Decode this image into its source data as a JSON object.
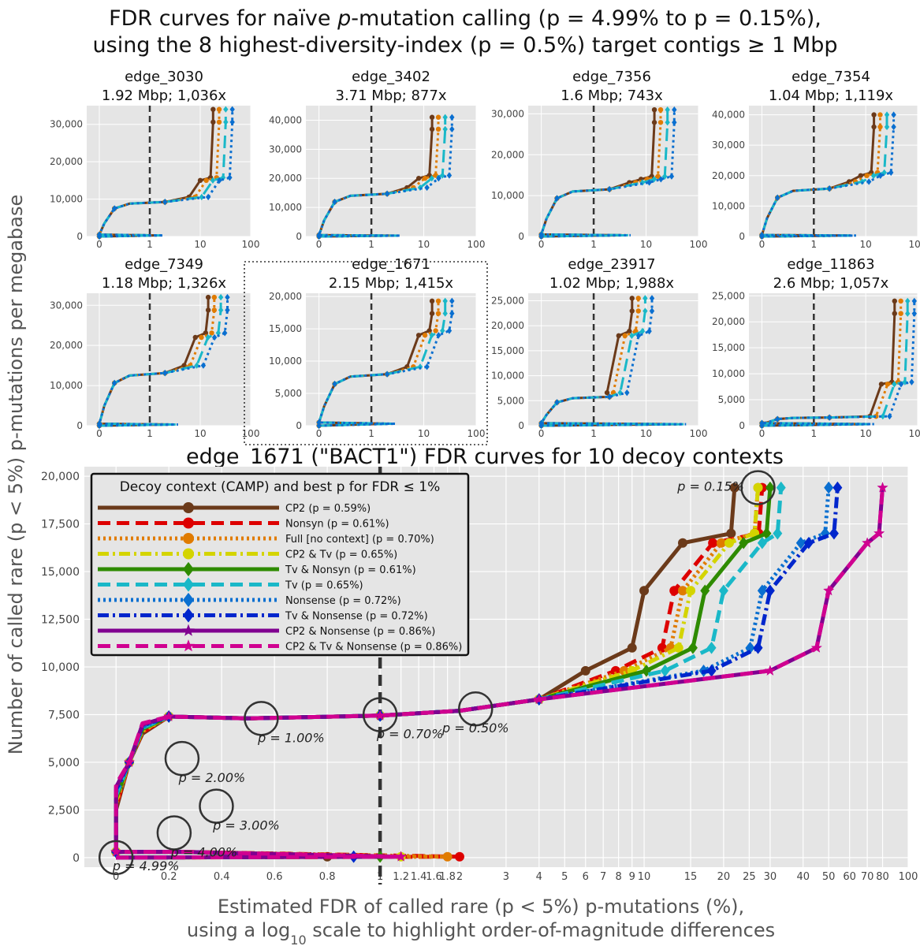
{
  "figure": {
    "title_line1_pre": "FDR curves for naïve ",
    "title_line1_p": "p",
    "title_line1_mid": "-mutation calling (",
    "title_line1_range": "p = 4.99% to p = 0.15%),",
    "title_line2": "using the 8 highest-diversity-index (p = 0.5%) target contigs ≥ 1 Mbp",
    "ylabel": "Number of called rare (p < 5%) p-mutations per megabase",
    "xlabel_line1": "Estimated FDR of called rare (p < 5%) p-mutations (%),",
    "xlabel_line2_pre": "using a log",
    "xlabel_line2_sub": "10",
    "xlabel_line2_post": " scale to highlight order-of-magnitude differences"
  },
  "chart_data": [
    {
      "type": "line",
      "name": "edge_3030",
      "stats": "1.92 Mbp; 1,036x",
      "ylim": [
        0,
        35000
      ],
      "yticks": [
        0,
        10000,
        20000,
        30000
      ],
      "ytick_labels": [
        "0",
        "10,000",
        "20,000",
        "30,000"
      ],
      "xticks": [
        0,
        1,
        10,
        100
      ],
      "xtick_labels": [
        "0",
        "1",
        "10",
        "100"
      ],
      "ymax": 34000,
      "tailx": 1.3,
      "knee": 8800,
      "kneex": 10,
      "jumpy": 15000
    },
    {
      "type": "line",
      "name": "edge_3402",
      "stats": "3.71 Mbp; 877x",
      "ylim": [
        0,
        45000
      ],
      "yticks": [
        0,
        10000,
        20000,
        30000,
        40000
      ],
      "ytick_labels": [
        "0",
        "10,000",
        "20,000",
        "30,000",
        "40,000"
      ],
      "xticks": [
        0,
        1,
        10,
        100
      ],
      "xtick_labels": [
        "0",
        "1",
        "10",
        "100"
      ],
      "ymax": 41000,
      "tailx": 2.5,
      "knee": 14000,
      "kneex": 8,
      "jumpy": 20000
    },
    {
      "type": "line",
      "name": "edge_7356",
      "stats": "1.6 Mbp; 743x",
      "ylim": [
        0,
        32000
      ],
      "yticks": [
        0,
        10000,
        20000,
        30000
      ],
      "ytick_labels": [
        "0",
        "10,000",
        "20,000",
        "30,000"
      ],
      "xticks": [
        0,
        1,
        10,
        100
      ],
      "xtick_labels": [
        "0",
        "1",
        "10",
        "100"
      ],
      "ymax": 31000,
      "tailx": 3.5,
      "knee": 11000,
      "kneex": 8,
      "jumpy": 14000
    },
    {
      "type": "line",
      "name": "edge_7354",
      "stats": "1.04 Mbp; 1,119x",
      "ylim": [
        0,
        43000
      ],
      "yticks": [
        0,
        10000,
        20000,
        30000,
        40000
      ],
      "ytick_labels": [
        "0",
        "10,000",
        "20,000",
        "30,000",
        "40,000"
      ],
      "xticks": [
        0,
        1,
        10,
        100
      ],
      "xtick_labels": [
        "0",
        "1",
        "10",
        "100"
      ],
      "ymax": 40000,
      "tailx": 4.5,
      "knee": 15000,
      "kneex": 8,
      "jumpy": 20000
    },
    {
      "type": "line",
      "name": "edge_7349",
      "stats": "1.18 Mbp; 1,326x",
      "ylim": [
        0,
        33000
      ],
      "yticks": [
        0,
        10000,
        20000,
        30000
      ],
      "ytick_labels": [
        "0",
        "10,000",
        "20,000",
        "30,000"
      ],
      "xticks": [
        0,
        1,
        10,
        100
      ],
      "xtick_labels": [
        "0",
        "1",
        "10",
        "100"
      ],
      "ymax": 32000,
      "tailx": 2.5,
      "knee": 12500,
      "kneex": 8,
      "jumpy": 22000
    },
    {
      "type": "line",
      "name": "edge_1671",
      "stats": "2.15 Mbp; 1,415x",
      "ylim": [
        0,
        20500
      ],
      "yticks": [
        0,
        5000,
        10000,
        15000,
        20000
      ],
      "ytick_labels": [
        "0",
        "5,000",
        "10,000",
        "15,000",
        "20,000"
      ],
      "xticks": [
        0,
        1,
        10,
        100
      ],
      "xtick_labels": [
        "0",
        "1",
        "10",
        "100"
      ],
      "ymax": 19300,
      "tailx": 2.0,
      "knee": 7600,
      "kneex": 8,
      "jumpy": 14000,
      "highlighted": true
    },
    {
      "type": "line",
      "name": "edge_23917",
      "stats": "1.02 Mbp; 1,988x",
      "ylim": [
        0,
        26500
      ],
      "yticks": [
        0,
        5000,
        10000,
        15000,
        20000,
        25000
      ],
      "ytick_labels": [
        "0",
        "5,000",
        "10,000",
        "15,000",
        "20,000",
        "25,000"
      ],
      "xticks": [
        0,
        1,
        10,
        100
      ],
      "xtick_labels": [
        "0",
        "1",
        "10",
        "100"
      ],
      "ymax": 25500,
      "tailx": 40,
      "knee": 5500,
      "kneex": 3,
      "jumpy": 18000
    },
    {
      "type": "line",
      "name": "edge_11863",
      "stats": "2.6 Mbp; 1,057x",
      "ylim": [
        0,
        25500
      ],
      "yticks": [
        0,
        5000,
        10000,
        15000,
        20000,
        25000
      ],
      "ytick_labels": [
        "0",
        "5,000",
        "10,000",
        "15,000",
        "20,000",
        "25,000"
      ],
      "xticks": [
        0,
        1,
        10,
        100
      ],
      "xtick_labels": [
        "0",
        "1",
        "10",
        "100"
      ],
      "ymax": 24000,
      "tailx": 10,
      "knee": 1500,
      "kneex": 20,
      "jumpy": 8000
    },
    {
      "type": "line",
      "name": "main",
      "title": "edge_1671 (\"BACT1\") FDR curves for 10 decoy contexts",
      "ylim": [
        -500,
        20500
      ],
      "yticks": [
        0,
        2500,
        5000,
        7500,
        10000,
        12500,
        15000,
        17500,
        20000
      ],
      "ytick_labels": [
        "0",
        "2,500",
        "5,000",
        "7,500",
        "10,000",
        "12,500",
        "15,000",
        "17,500",
        "20,000"
      ],
      "xticks": [
        0,
        0.2,
        0.4,
        0.6,
        0.8,
        1,
        1.2,
        1.4,
        1.6,
        1.8,
        2,
        3,
        4,
        5,
        6,
        7,
        8,
        9,
        10,
        15,
        20,
        25,
        30,
        40,
        50,
        60,
        70,
        80,
        100
      ],
      "xtick_labels": [
        "0",
        "0.2",
        "0.4",
        "0.6",
        "0.8",
        "1",
        "1.2",
        "1.4",
        "1.6",
        "1.8",
        "2",
        "3",
        "4",
        "5",
        "6",
        "7",
        "8",
        "9",
        "10",
        "15",
        "20",
        "25",
        "30",
        "40",
        "50",
        "60",
        "70",
        "80",
        "100"
      ],
      "legend_title": "Decoy context (CAMP) and best p for FDR ≤ 1%",
      "legend_position": "top-left",
      "series": [
        {
          "name": "CP2",
          "best_p": "(p = 0.59%)",
          "color": "#6b3a1a",
          "dash": "",
          "marker": "circle",
          "top_x": 22,
          "knee_x": 10,
          "tail_x": 0.8
        },
        {
          "name": "Nonsyn",
          "best_p": "(p = 0.61%)",
          "color": "#dd0000",
          "dash": "16,8",
          "marker": "circle",
          "top_x": 28,
          "knee_x": 13,
          "tail_x": 2.0
        },
        {
          "name": "Full [no context]",
          "best_p": "(p = 0.70%)",
          "color": "#e07b00",
          "dash": "3,4",
          "marker": "circle",
          "top_x": 27,
          "knee_x": 14,
          "tail_x": 1.8
        },
        {
          "name": "CP2 & Tv",
          "best_p": "(p = 0.65%)",
          "color": "#d4d400",
          "dash": "14,5,3,5",
          "marker": "circle",
          "top_x": 27,
          "knee_x": 15,
          "tail_x": 1.2
        },
        {
          "name": "Tv & Nonsyn",
          "best_p": "(p = 0.61%)",
          "color": "#2e8b00",
          "dash": "",
          "marker": "diamond",
          "top_x": 30,
          "knee_x": 17,
          "tail_x": 1.0
        },
        {
          "name": "Tv",
          "best_p": "(p = 0.65%)",
          "color": "#1ab8c8",
          "dash": "16,8",
          "marker": "diamond",
          "top_x": 33,
          "knee_x": 20,
          "tail_x": 0.9
        },
        {
          "name": "Nonsense",
          "best_p": "(p = 0.72%)",
          "color": "#0a6fd0",
          "dash": "3,4",
          "marker": "diamond",
          "top_x": 50,
          "knee_x": 28,
          "tail_x": 0.9
        },
        {
          "name": "Tv & Nonsense",
          "best_p": "(p = 0.72%)",
          "color": "#0026cc",
          "dash": "14,5,3,5",
          "marker": "diamond",
          "top_x": 54,
          "knee_x": 30,
          "tail_x": 0.9
        },
        {
          "name": "CP2 & Nonsense",
          "best_p": "(p = 0.86%)",
          "color": "#800090",
          "dash": "",
          "marker": "star",
          "top_x": 80,
          "knee_x": 50,
          "tail_x": 1.2
        },
        {
          "name": "CP2 & Tv & Nonsense",
          "best_p": "(p = 0.86%)",
          "color": "#d00090",
          "dash": "16,8",
          "marker": "star",
          "top_x": 80,
          "knee_x": 50,
          "tail_x": 1.2
        }
      ],
      "annotations": [
        {
          "label": "p = 0.15%",
          "x": 27,
          "y": 19400
        },
        {
          "label": "p = 1.00%",
          "x": 0.55,
          "y": 7300
        },
        {
          "label": "p = 0.70%",
          "x": 1.0,
          "y": 7500
        },
        {
          "label": "p = 0.50%",
          "x": 2.3,
          "y": 7800
        },
        {
          "label": "p = 2.00%",
          "x": 0.25,
          "y": 5200
        },
        {
          "label": "p = 3.00%",
          "x": 0.38,
          "y": 2700
        },
        {
          "label": "p = 4.00%",
          "x": 0.22,
          "y": 1300
        },
        {
          "label": "p = 4.99%",
          "x": 0.0,
          "y": 0
        }
      ]
    }
  ]
}
